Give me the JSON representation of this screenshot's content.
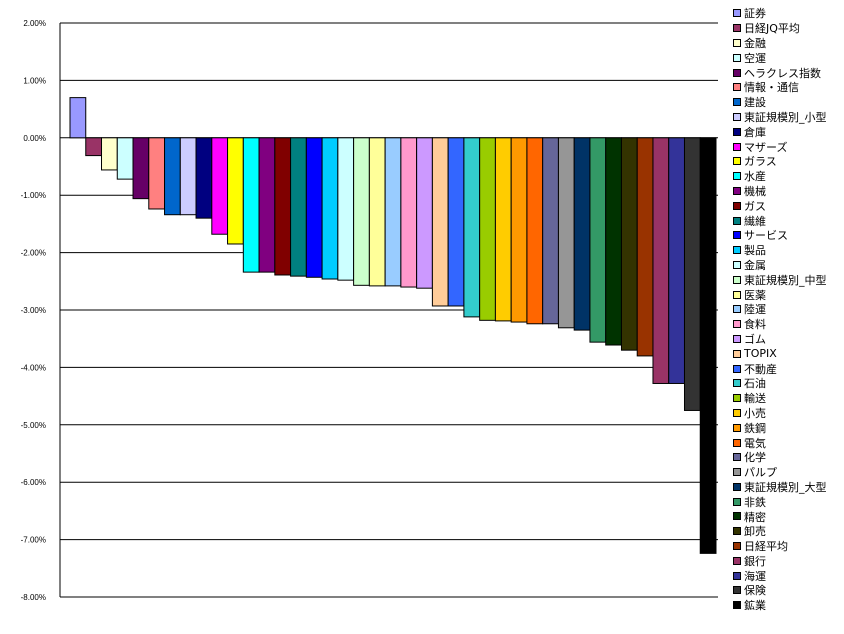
{
  "chart_data": {
    "type": "bar",
    "title": "",
    "xlabel": "",
    "ylabel": "",
    "ylim": [
      -8,
      2
    ],
    "y_tick_labels": [
      "2.00%",
      "1.00%",
      "0.00%",
      "-1.00%",
      "-2.00%",
      "-3.00%",
      "-4.00%",
      "-5.00%",
      "-6.00%",
      "-7.00%",
      "-8.00%"
    ],
    "y_ticks": [
      2,
      1,
      0,
      -1,
      -2,
      -3,
      -4,
      -5,
      -6,
      -7,
      -8
    ],
    "grid": true,
    "legend_position": "right",
    "unit": "%",
    "categories": [
      "証券",
      "日経JQ平均",
      "金融",
      "空運",
      "ヘラクレス指数",
      "情報・通信",
      "建設",
      "東証規模別_小型",
      "倉庫",
      "マザーズ",
      "ガラス",
      "水産",
      "機械",
      "ガス",
      "繊維",
      "サービス",
      "製品",
      "金属",
      "東証規模別_中型",
      "医薬",
      "陸運",
      "食料",
      "ゴム",
      "TOPIX",
      "不動産",
      "石油",
      "輸送",
      "小売",
      "鉄鋼",
      "電気",
      "化学",
      "パルプ",
      "東証規模別_大型",
      "非鉄",
      "精密",
      "卸売",
      "日経平均",
      "銀行",
      "海運",
      "保険",
      "鉱業"
    ],
    "values": [
      0.7,
      -0.31,
      -0.56,
      -0.72,
      -1.06,
      -1.24,
      -1.34,
      -1.34,
      -1.4,
      -1.68,
      -1.85,
      -2.34,
      -2.34,
      -2.39,
      -2.41,
      -2.43,
      -2.46,
      -2.48,
      -2.57,
      -2.58,
      -2.58,
      -2.6,
      -2.62,
      -2.93,
      -2.93,
      -3.12,
      -3.18,
      -3.19,
      -3.21,
      -3.24,
      -3.24,
      -3.31,
      -3.35,
      -3.56,
      -3.61,
      -3.7,
      -3.8,
      -4.28,
      -4.28,
      -4.75,
      -7.24
    ],
    "colors": [
      "#9999ff",
      "#993366",
      "#ffffcc",
      "#ccffff",
      "#660066",
      "#ff8080",
      "#0066cc",
      "#ccccff",
      "#000080",
      "#ff00ff",
      "#ffff00",
      "#00ffff",
      "#800080",
      "#800000",
      "#008080",
      "#0000ff",
      "#00ccff",
      "#ccffff",
      "#ccffcc",
      "#ffff99",
      "#99ccff",
      "#ff99cc",
      "#cc99ff",
      "#ffcc99",
      "#3366ff",
      "#33cccc",
      "#99cc00",
      "#ffcc00",
      "#ff9900",
      "#ff6600",
      "#666699",
      "#969696",
      "#003366",
      "#339966",
      "#003300",
      "#333300",
      "#993300",
      "#993366",
      "#333399",
      "#333333",
      "#000000"
    ]
  }
}
